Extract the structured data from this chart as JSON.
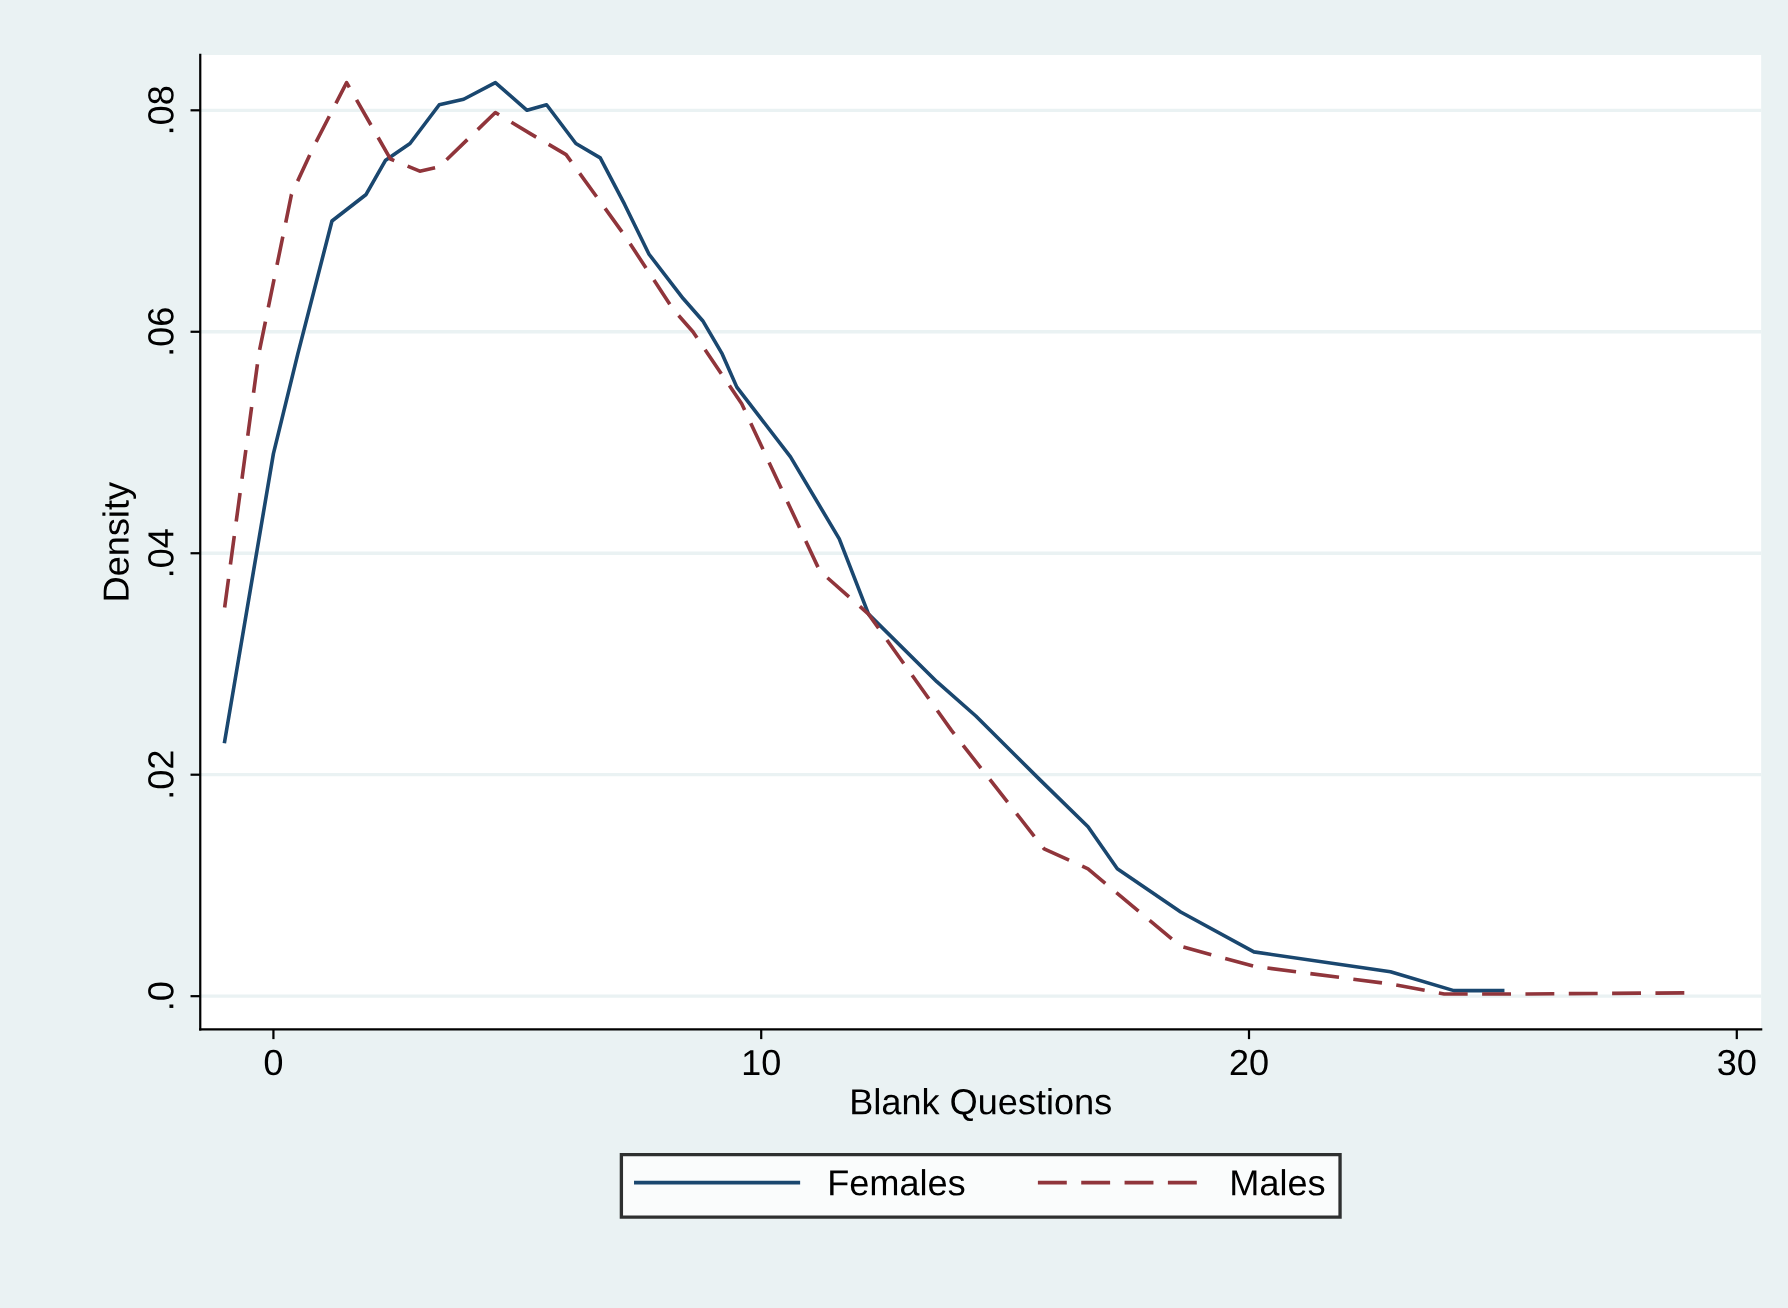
{
  "chart_data": {
    "type": "line",
    "xlabel": "Blank Questions",
    "ylabel": "Density",
    "xlim": [
      -1.5,
      30.5
    ],
    "xticks": [
      0,
      10,
      20,
      30
    ],
    "ylim": [
      -0.003,
      0.085
    ],
    "yticks": [
      {
        "value": 0,
        "label": ".0"
      },
      {
        "value": 0.02,
        "label": ".02"
      },
      {
        "value": 0.04,
        "label": ".04"
      },
      {
        "value": 0.06,
        "label": ".06"
      },
      {
        "value": 0.08,
        "label": ".08"
      }
    ],
    "grid": "y",
    "legend": "bottom",
    "marker": "none",
    "series": [
      {
        "name": "Females",
        "color": "#1a476f",
        "line_style": "solid",
        "x": [
          -1,
          0,
          0.5,
          1.2,
          1.9,
          2.3,
          2.8,
          3.4,
          3.9,
          4.55,
          5.2,
          5.6,
          6.2,
          6.7,
          7.2,
          7.7,
          8.4,
          8.8,
          9.2,
          9.5,
          10.6,
          11.6,
          12.2,
          13.6,
          14.4,
          15.7,
          16.7,
          17.3,
          18.6,
          20.1,
          22.9,
          24.2,
          25.2
        ],
        "values": [
          0.023,
          0.049,
          0.058,
          0.07,
          0.0724,
          0.0755,
          0.077,
          0.0805,
          0.081,
          0.0825,
          0.08,
          0.0805,
          0.077,
          0.0757,
          0.0715,
          0.067,
          0.063,
          0.061,
          0.058,
          0.055,
          0.0487,
          0.0413,
          0.0345,
          0.0284,
          0.0253,
          0.0196,
          0.0153,
          0.0115,
          0.0076,
          0.004,
          0.0022,
          0.0005,
          0.0005
        ]
      },
      {
        "name": "Males",
        "color": "#90353b",
        "line_style": "dashed",
        "x": [
          -1,
          -0.3,
          0.37,
          0.8,
          1.5,
          2.4,
          3.0,
          3.4,
          4.55,
          5.3,
          6.0,
          7.2,
          8.2,
          8.6,
          9.6,
          11.2,
          12.2,
          13.9,
          15.8,
          16.7,
          18.6,
          20.1,
          22.9,
          24.0,
          25.7,
          29.0
        ],
        "values": [
          0.0351,
          0.058,
          0.0724,
          0.0765,
          0.0825,
          0.0756,
          0.0745,
          0.0749,
          0.0798,
          0.0778,
          0.076,
          0.0687,
          0.062,
          0.06,
          0.0535,
          0.0384,
          0.0345,
          0.024,
          0.0133,
          0.0115,
          0.0045,
          0.0027,
          0.0011,
          0.0002,
          0.0002,
          0.0003
        ]
      }
    ]
  }
}
